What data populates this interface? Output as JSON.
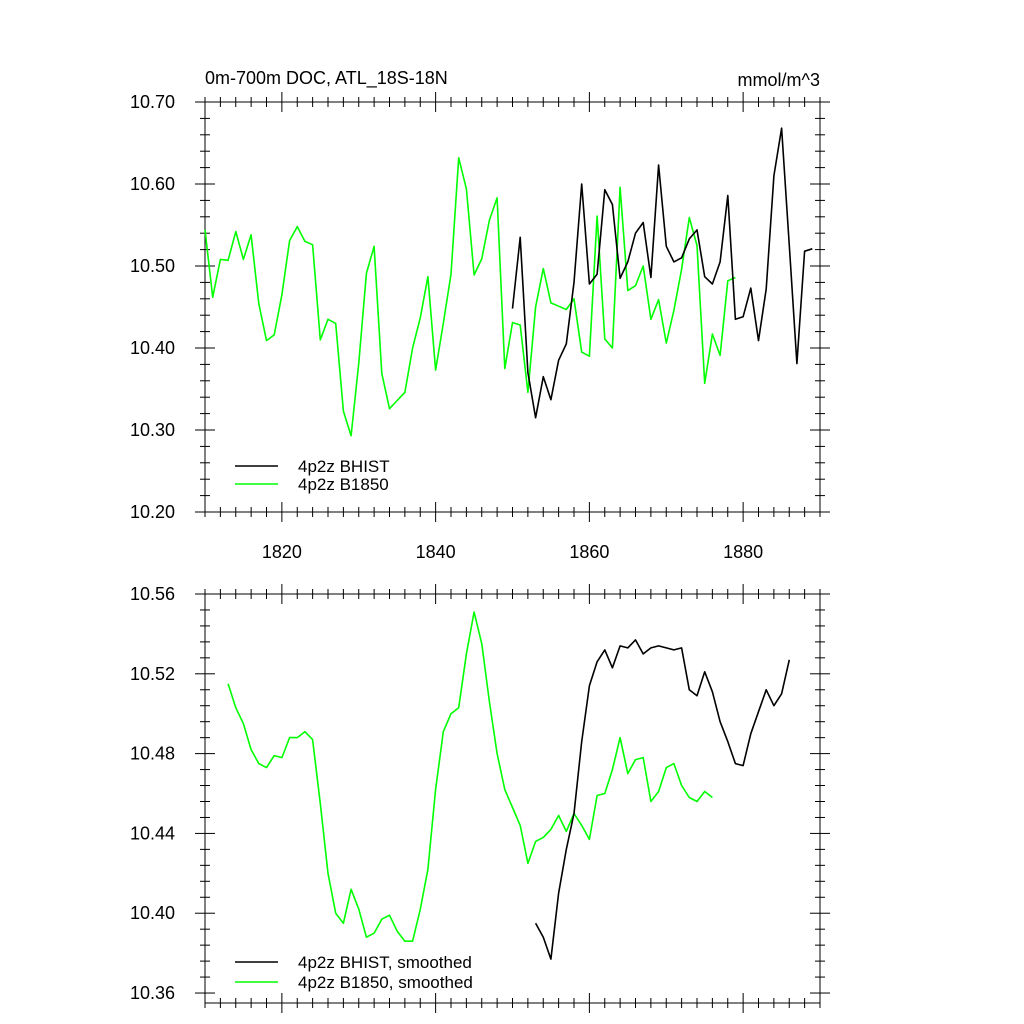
{
  "chart_data": [
    {
      "type": "line",
      "title": "0m-700m DOC, ATL_18S-18N",
      "units": "mmol/m^3",
      "xlim": [
        1810,
        1890
      ],
      "ylim": [
        10.2,
        10.7
      ],
      "x_ticks": [
        "1820",
        "1840",
        "1860",
        "1880"
      ],
      "y_ticks": [
        "10.20",
        "10.30",
        "10.40",
        "10.50",
        "10.60",
        "10.70"
      ],
      "grid": false,
      "legend_position": "bottom-left",
      "series": [
        {
          "name": "4p2z BHIST",
          "color": "#000000",
          "x_start": 1850,
          "values": [
            10.448,
            10.535,
            10.37,
            10.315,
            10.365,
            10.337,
            10.385,
            10.405,
            10.48,
            10.6,
            10.478,
            10.49,
            10.593,
            10.575,
            10.485,
            10.505,
            10.54,
            10.553,
            10.486,
            10.623,
            10.524,
            10.505,
            10.51,
            10.533,
            10.544,
            10.487,
            10.478,
            10.505,
            10.586,
            10.435,
            10.438,
            10.473,
            10.409,
            10.472,
            10.61,
            10.668,
            10.525,
            10.381,
            10.518,
            10.521
          ]
        },
        {
          "name": "4p2z B1850",
          "color": "#00ff00",
          "x_start": 1810,
          "values": [
            10.544,
            10.462,
            10.508,
            10.507,
            10.542,
            10.508,
            10.538,
            10.454,
            10.409,
            10.416,
            10.465,
            10.531,
            10.548,
            10.53,
            10.526,
            10.41,
            10.435,
            10.43,
            10.323,
            10.293,
            10.382,
            10.491,
            10.524,
            10.369,
            10.326,
            10.336,
            10.346,
            10.4,
            10.437,
            10.487,
            10.373,
            10.43,
            10.49,
            10.632,
            10.594,
            10.489,
            10.509,
            10.556,
            10.583,
            10.375,
            10.431,
            10.428,
            10.346,
            10.45,
            10.497,
            10.455,
            10.451,
            10.447,
            10.46,
            10.395,
            10.39,
            10.561,
            10.411,
            10.4,
            10.596,
            10.47,
            10.476,
            10.5,
            10.435,
            10.459,
            10.406,
            10.446,
            10.496,
            10.559,
            10.525,
            10.357,
            10.417,
            10.391,
            10.482,
            10.486
          ]
        }
      ]
    },
    {
      "type": "line",
      "title": "",
      "xlim": [
        1810,
        1890
      ],
      "ylim": [
        10.355,
        10.56
      ],
      "x_ticks": [],
      "y_ticks": [
        "10.36",
        "10.40",
        "10.44",
        "10.48",
        "10.52",
        "10.56"
      ],
      "grid": false,
      "legend_position": "bottom-left",
      "series": [
        {
          "name": "4p2z BHIST, smoothed",
          "color": "#000000",
          "x_start": 1853,
          "values": [
            10.395,
            10.388,
            10.377,
            10.41,
            10.432,
            10.45,
            10.486,
            10.514,
            10.526,
            10.532,
            10.523,
            10.534,
            10.533,
            10.537,
            10.53,
            10.533,
            10.534,
            10.533,
            10.532,
            10.533,
            10.512,
            10.509,
            10.521,
            10.511,
            10.496,
            10.486,
            10.475,
            10.474,
            10.49,
            10.501,
            10.512,
            10.504,
            10.51,
            10.527
          ]
        },
        {
          "name": "4p2z B1850, smoothed",
          "color": "#00ff00",
          "x_start": 1813,
          "values": [
            10.515,
            10.503,
            10.495,
            10.482,
            10.475,
            10.473,
            10.479,
            10.478,
            10.488,
            10.488,
            10.491,
            10.487,
            10.455,
            10.42,
            10.4,
            10.395,
            10.412,
            10.402,
            10.388,
            10.39,
            10.397,
            10.399,
            10.391,
            10.386,
            10.386,
            10.402,
            10.422,
            10.462,
            10.491,
            10.5,
            10.503,
            10.53,
            10.551,
            10.535,
            10.506,
            10.48,
            10.462,
            10.453,
            10.444,
            10.425,
            10.436,
            10.438,
            10.442,
            10.449,
            10.441,
            10.45,
            10.444,
            10.437,
            10.459,
            10.46,
            10.472,
            10.488,
            10.47,
            10.477,
            10.478,
            10.456,
            10.461,
            10.473,
            10.475,
            10.464,
            10.458,
            10.456,
            10.461,
            10.458
          ]
        }
      ]
    }
  ]
}
